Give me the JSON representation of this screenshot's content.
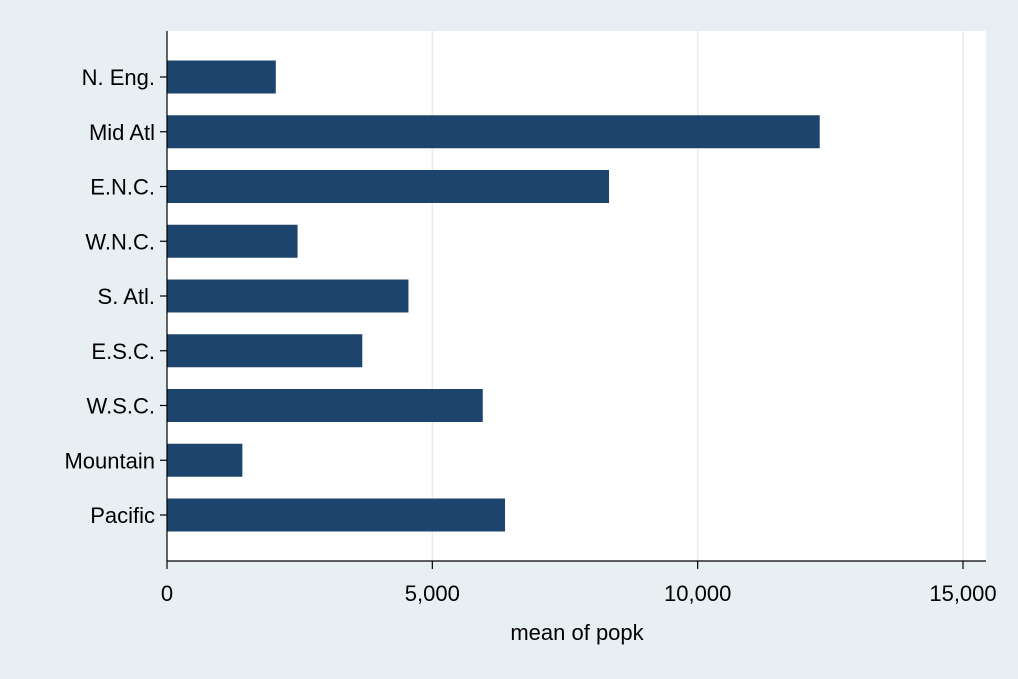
{
  "chart_data": {
    "type": "bar",
    "orientation": "horizontal",
    "categories": [
      "N. Eng.",
      "Mid Atl",
      "E.N.C.",
      "W.N.C.",
      "S. Atl.",
      "E.S.C.",
      "W.S.C.",
      "Mountain",
      "Pacific"
    ],
    "values": [
      2050,
      12300,
      8330,
      2460,
      4550,
      3680,
      5950,
      1420,
      6370
    ],
    "xlabel": "mean of popk",
    "ylabel": "",
    "xlim": [
      0,
      15500
    ],
    "xticks": [
      0,
      5000,
      10000,
      15000
    ],
    "xtick_labels": [
      "0",
      "5,000",
      "10,000",
      "15,000"
    ],
    "grid": true,
    "colors": {
      "bar": "#1d446c",
      "plot_background": "#ffffff",
      "figure_background": "#e8eff2",
      "grid": "#e6ebee"
    }
  }
}
